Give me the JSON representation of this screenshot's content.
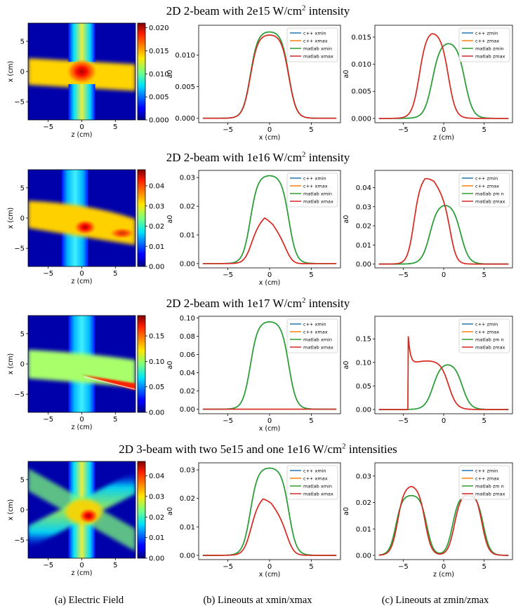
{
  "row_titles": [
    {
      "pre": "2D 2-beam with 2e15 W/cm",
      "sup": "2",
      "post": " intensity"
    },
    {
      "pre": "2D 2-beam with 1e16 W/cm",
      "sup": "2",
      "post": " intensity"
    },
    {
      "pre": "2D 2-beam with 1e17 W/cm",
      "sup": "2",
      "post": " intensity"
    },
    {
      "pre": "2D 3-beam with two 5e15 and one 1e16 W/cm",
      "sup": "2",
      "post": " intensities"
    }
  ],
  "captions": [
    "(a) Electric Field",
    "(b) Lineouts at xmin/xmax",
    "(c) Lineouts at zmin/zmax"
  ],
  "colors": {
    "c++ min": "#1f77b4",
    "c++ max": "#ff7f0e",
    "matlab min": "#2ca02c",
    "matlab max": "#d62728"
  },
  "chart_data": [
    {
      "type": "heatmap",
      "panel": "row1-field",
      "xlabel": "z (cm)",
      "ylabel": "x (cm)",
      "xticks": [
        -5,
        0,
        5
      ],
      "yticks": [
        5,
        0,
        -5
      ],
      "xlim": [
        -8,
        8
      ],
      "ylim": [
        -8,
        8
      ],
      "colorbar_ticks": [
        "0.020",
        "0.015",
        "0.010",
        "0.005",
        "0.000"
      ],
      "vmax": 0.021,
      "features": "vertical beam at z=0 (width ~4 cm), horizontal beam at x=0 bending slightly downward, hotspot at center"
    },
    {
      "type": "line",
      "panel": "row1-xlineout",
      "xlabel": "x (cm)",
      "ylabel": "a0",
      "xticks": [
        -5,
        0,
        5
      ],
      "yticks": [
        "0.000",
        "0.005",
        "0.010"
      ],
      "xlim": [
        -8.5,
        8.5
      ],
      "ylim": [
        -0.0007,
        0.0147
      ],
      "legend": [
        "c++ xmin",
        "c++ xmax",
        "matlab xmin",
        "matlab xmax"
      ],
      "series": [
        {
          "name": "c++ xmin",
          "peak": 0.0138,
          "center": 0
        },
        {
          "name": "c++ xmax",
          "peak": 0.0133,
          "center": 0
        },
        {
          "name": "matlab xmin",
          "peak": 0.0138,
          "center": 0
        },
        {
          "name": "matlab xmax",
          "peak": 0.0133,
          "center": 0
        }
      ]
    },
    {
      "type": "line",
      "panel": "row1-zlineout",
      "xlabel": "z (cm)",
      "ylabel": "a0",
      "xticks": [
        -5,
        0,
        5
      ],
      "yticks": [
        "0.000",
        "0.005",
        "0.010",
        "0.015"
      ],
      "xlim": [
        -8.5,
        8.5
      ],
      "ylim": [
        -0.0008,
        0.0172
      ],
      "legend": [
        "c++ zmin",
        "c++ zmax",
        "matlab zmin",
        "matlab zmax"
      ],
      "series": [
        {
          "name": "c++ zmin",
          "peak": 0.0143,
          "center": 0.5
        },
        {
          "name": "c++ zmax",
          "peak": 0.0163,
          "center": -1.5
        },
        {
          "name": "matlab zmin",
          "peak": 0.0143,
          "center": 0.5
        },
        {
          "name": "matlab zmax",
          "peak": 0.0163,
          "center": -1.5
        }
      ]
    },
    {
      "type": "heatmap",
      "panel": "row2-field",
      "xlabel": "z (cm)",
      "ylabel": "x (cm)",
      "xticks": [
        -5,
        0,
        5
      ],
      "yticks": [
        5,
        0,
        -5
      ],
      "xlim": [
        -8,
        8
      ],
      "ylim": [
        -8,
        8
      ],
      "colorbar_ticks": [
        "0.04",
        "0.03",
        "0.02",
        "0.01",
        "0.00"
      ],
      "vmax": 0.048,
      "features": "vertical beam at z=-1, horizontal beam bending downward to x=-2 at right edge, hotspot near z=0,x=-1.5"
    },
    {
      "type": "line",
      "panel": "row2-xlineout",
      "xlabel": "x (cm)",
      "ylabel": "a0",
      "xticks": [
        -5,
        0,
        5
      ],
      "yticks": [
        "0.00",
        "0.01",
        "0.02",
        "0.03"
      ],
      "xlim": [
        -8.5,
        8.5
      ],
      "ylim": [
        -0.0015,
        0.0325
      ],
      "legend": [
        "c++ xmin",
        "c++ xmax",
        "matlab xmin",
        "matlab xmax"
      ],
      "series": [
        {
          "name": "c++ xmin",
          "peak": 0.031,
          "center": 0
        },
        {
          "name": "c++ xmax",
          "peak": 0.016,
          "center": -0.5
        },
        {
          "name": "matlab xmin",
          "peak": 0.031,
          "center": 0
        },
        {
          "name": "matlab xmax",
          "peak": 0.016,
          "center": -0.5
        }
      ]
    },
    {
      "type": "line",
      "panel": "row2-zlineout",
      "xlabel": "",
      "ylabel": "a0",
      "xticks": [
        -5,
        0,
        5
      ],
      "yticks": [
        "0.00",
        "0.01",
        "0.02",
        "0.03",
        "0.04"
      ],
      "xlim": [
        -8.5,
        8.5
      ],
      "ylim": [
        -0.002,
        0.049
      ],
      "legend": [
        "c++ zmin",
        "c++ zmax",
        "matlab zm n",
        "matlab zmax"
      ],
      "series": [
        {
          "name": "c++ zmin",
          "peak": 0.032,
          "center": 0.2
        },
        {
          "name": "c++ zmax",
          "peak": 0.046,
          "center": -2.3
        },
        {
          "name": "matlab zm n",
          "peak": 0.032,
          "center": 0.2
        },
        {
          "name": "matlab zmax",
          "peak": 0.046,
          "center": -2.3
        }
      ]
    },
    {
      "type": "heatmap",
      "panel": "row3-field",
      "xlabel": "z (cm)",
      "ylabel": "x (cm)",
      "xticks": [
        -5,
        0,
        5
      ],
      "yticks": [
        5,
        0,
        -5
      ],
      "xlim": [
        -8,
        8
      ],
      "ylim": [
        -8,
        8
      ],
      "colorbar_ticks": [
        "0.15",
        "0.10",
        "0.05",
        "0.00"
      ],
      "vmax": 0.19,
      "features": "vertical beam at z=0, horizontal beam at x=0 to -1, thin bright filament from (0,-2) to (8,-4)"
    },
    {
      "type": "line",
      "panel": "row3-xlineout",
      "xlabel": "x (cm)",
      "ylabel": "a0",
      "xticks": [
        -5,
        0,
        5
      ],
      "yticks": [
        "0.00",
        "0.02",
        "0.04",
        "0.06",
        "0.08",
        "0.10"
      ],
      "xlim": [
        -8.5,
        8.5
      ],
      "ylim": [
        -0.005,
        0.102
      ],
      "legend": [
        "c++ xmin",
        "c++ xmax",
        "matlab xmin",
        "matlab xmax"
      ],
      "series": [
        {
          "name": "c++ xmin",
          "peak": 0.097,
          "center": 0
        },
        {
          "name": "c++ xmax",
          "peak": 0.0,
          "center": 0
        },
        {
          "name": "matlab xmin",
          "peak": 0.097,
          "center": 0
        },
        {
          "name": "matlab xmax",
          "peak": 0.0,
          "center": 0
        }
      ]
    },
    {
      "type": "line",
      "panel": "row3-zlineout",
      "xlabel": "",
      "ylabel": "a0",
      "xticks": [
        -5,
        0,
        5
      ],
      "yticks": [
        "0.00",
        "0.05",
        "0.10",
        "0.15"
      ],
      "xlim": [
        -8.5,
        8.5
      ],
      "ylim": [
        -0.009,
        0.198
      ],
      "legend": [
        "c++ zmin",
        "c++ zmax",
        "matlab zm n",
        "matlab zmax"
      ],
      "series": [
        {
          "name": "c++ zmin",
          "peak": 0.1,
          "center": 0.5
        },
        {
          "name": "c++ zmax",
          "peak": 0.19,
          "center": -4.3
        },
        {
          "name": "matlab zm n",
          "peak": 0.1,
          "center": 0.5
        },
        {
          "name": "matlab zmax",
          "peak": 0.19,
          "center": -4.3
        }
      ]
    },
    {
      "type": "heatmap",
      "panel": "row4-field",
      "xlabel": "z (cm)",
      "ylabel": "x (cm)",
      "xticks": [
        -5,
        0,
        5
      ],
      "yticks": [
        5,
        0,
        -5
      ],
      "xlim": [
        -8,
        8
      ],
      "ylim": [
        -8,
        8
      ],
      "colorbar_ticks": [
        "0.04",
        "0.03",
        "0.02",
        "0.01",
        "0.00"
      ],
      "vmax": 0.047,
      "features": "vertical beam at z=0 plus two diagonal beams crossing at center, hotspot near z=1,x=-1"
    },
    {
      "type": "line",
      "panel": "row4-xlineout",
      "xlabel": "x (cm)",
      "ylabel": "a0",
      "xticks": [
        -5,
        0,
        5
      ],
      "yticks": [
        "0.00",
        "0.01",
        "0.02",
        "0.03"
      ],
      "xlim": [
        -8.5,
        8.5
      ],
      "ylim": [
        -0.0015,
        0.0325
      ],
      "legend": [
        "c++ xmin",
        "c++ xmax",
        "matlab xmin",
        "matlab xmax"
      ],
      "series": [
        {
          "name": "c++ xmin",
          "peak": 0.031,
          "center": 0
        },
        {
          "name": "c++ xmax",
          "peak": 0.02,
          "center": -0.5
        },
        {
          "name": "matlab xmin",
          "peak": 0.031,
          "center": 0
        },
        {
          "name": "matlab xmax",
          "peak": 0.02,
          "center": -0.5
        }
      ]
    },
    {
      "type": "line",
      "panel": "row4-zlineout",
      "xlabel": "z (cm)",
      "ylabel": "a0",
      "xticks": [
        -5,
        0,
        5
      ],
      "yticks": [
        "0.00",
        "0.01",
        "0.02",
        "0.03"
      ],
      "xlim": [
        -8.5,
        8.5
      ],
      "ylim": [
        -0.0016,
        0.035
      ],
      "legend": [
        "c++ zmin",
        "c++ zmax",
        "matlab zm n",
        "matlab zmax"
      ],
      "series": [
        {
          "name": "c++ zmin",
          "peak": 0.023,
          "centers": [
            -4,
            3
          ]
        },
        {
          "name": "c++ zmax",
          "peak": 0.027,
          "centers": [
            -4,
            3
          ]
        },
        {
          "name": "matlab zm n",
          "peak": 0.023,
          "centers": [
            -4,
            3
          ]
        },
        {
          "name": "matlab zmax",
          "peak": 0.027,
          "centers": [
            -4,
            3
          ]
        }
      ]
    }
  ]
}
